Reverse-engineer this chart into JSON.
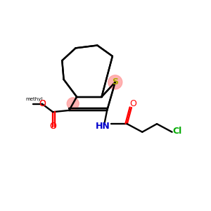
{
  "background": "#ffffff",
  "atom_colors": {
    "S": "#aaaa00",
    "O": "#ff0000",
    "N": "#0000cc",
    "Cl": "#00aa00",
    "C": "#000000"
  },
  "pink": "#ff9999",
  "lw": 1.7
}
